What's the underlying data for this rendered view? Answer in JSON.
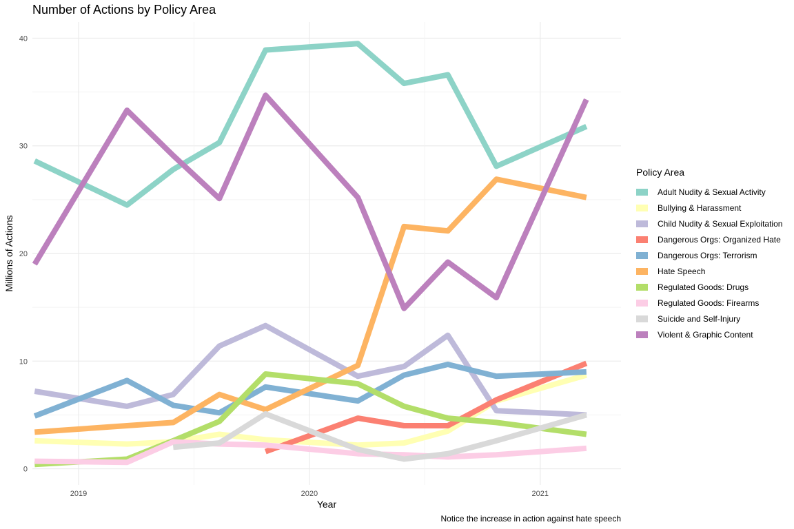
{
  "chart_data": {
    "type": "line",
    "title": "Number of Actions by Policy Area",
    "xlabel": "Year",
    "ylabel": "Millions of Actions",
    "caption": "Notice the increase in action against hate speech",
    "legend_title": "Policy Area",
    "legend_position": "right",
    "grid": true,
    "xlim": [
      2018.8,
      2021.35
    ],
    "ylim": [
      -1.5,
      41.5
    ],
    "x_ticks": [
      {
        "v": 2019,
        "label": "2019"
      },
      {
        "v": 2020,
        "label": "2020"
      },
      {
        "v": 2021,
        "label": "2021"
      }
    ],
    "y_ticks": [
      {
        "v": 0,
        "label": "0"
      },
      {
        "v": 10,
        "label": "10"
      },
      {
        "v": 20,
        "label": "20"
      },
      {
        "v": 30,
        "label": "30"
      },
      {
        "v": 40,
        "label": "40"
      }
    ],
    "x": [
      2018.81,
      2019.21,
      2019.41,
      2019.61,
      2019.81,
      2020.21,
      2020.41,
      2020.6,
      2020.81,
      2021.2
    ],
    "series": [
      {
        "name": "Adult Nudity & Sexual Activity",
        "color": "#8dd3c7",
        "values": [
          28.6,
          24.5,
          27.8,
          30.3,
          38.9,
          39.5,
          35.8,
          36.6,
          28.1,
          31.8
        ]
      },
      {
        "name": "Bullying & Harassment",
        "color": "#ffffb3",
        "values": [
          2.6,
          2.3,
          2.5,
          3.2,
          2.7,
          2.2,
          2.4,
          3.5,
          6.3,
          8.7
        ]
      },
      {
        "name": "Child Nudity & Sexual Exploitation",
        "color": "#bebada",
        "values": [
          7.2,
          5.8,
          6.9,
          11.4,
          13.3,
          8.6,
          9.5,
          12.4,
          5.4,
          5.0
        ]
      },
      {
        "name": "Dangerous Orgs: Organized Hate",
        "color": "#fb8072",
        "values": [
          null,
          null,
          null,
          null,
          1.6,
          4.7,
          4.0,
          4.0,
          6.4,
          9.8
        ]
      },
      {
        "name": "Dangerous Orgs: Terrorism",
        "color": "#80b1d3",
        "values": [
          4.9,
          8.2,
          5.9,
          5.2,
          7.6,
          6.3,
          8.7,
          9.7,
          8.6,
          9.0
        ]
      },
      {
        "name": "Hate Speech",
        "color": "#fdb462",
        "values": [
          3.4,
          4.0,
          4.3,
          6.9,
          5.5,
          9.6,
          22.5,
          22.1,
          26.9,
          25.2
        ]
      },
      {
        "name": "Regulated Goods: Drugs",
        "color": "#b3de69",
        "values": [
          0.4,
          0.9,
          2.6,
          4.4,
          8.8,
          7.9,
          5.8,
          4.7,
          4.3,
          3.2
        ]
      },
      {
        "name": "Regulated Goods: Firearms",
        "color": "#fccde5",
        "values": [
          0.7,
          0.6,
          2.5,
          2.3,
          2.2,
          1.4,
          1.3,
          1.1,
          1.3,
          1.9
        ]
      },
      {
        "name": "Suicide and Self-Injury",
        "color": "#d9d9d9",
        "values": [
          null,
          null,
          2.0,
          2.4,
          5.1,
          1.8,
          0.9,
          1.4,
          2.6,
          5.0
        ]
      },
      {
        "name": "Violent & Graphic Content",
        "color": "#bc80bd",
        "values": [
          19.0,
          33.3,
          29.1,
          25.1,
          34.7,
          25.2,
          14.9,
          19.2,
          15.9,
          34.3
        ]
      }
    ]
  }
}
